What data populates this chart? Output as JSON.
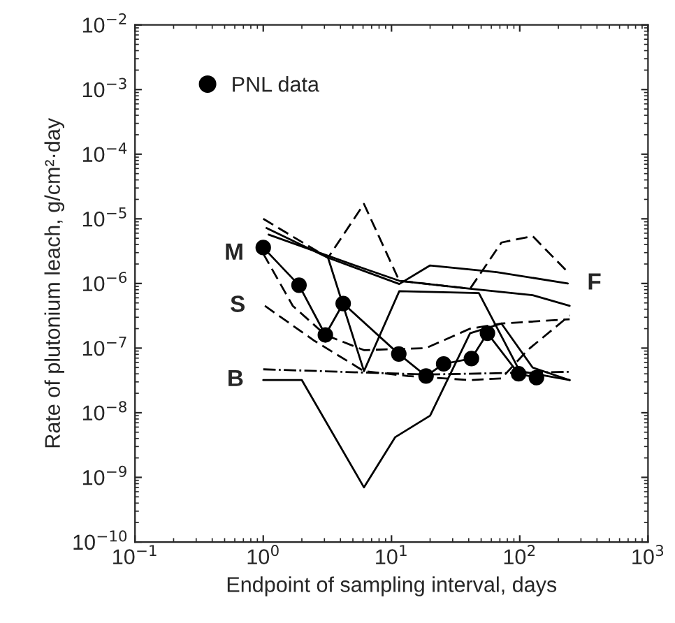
{
  "chart_data": {
    "type": "line",
    "xlabel": "Endpoint of sampling interval, days",
    "ylabel": "Rate of plutonium leach, g/cm²·day",
    "log": "xy",
    "grid": false,
    "legend": "top left",
    "xlim": [
      0.1,
      1000
    ],
    "ylim": [
      1e-10,
      0.01
    ],
    "xticks": [
      {
        "value": 0.1,
        "label": "10$^{−1}$"
      },
      {
        "value": 1,
        "label": "10$^{0}$"
      },
      {
        "value": 10,
        "label": "10$^{1}$"
      },
      {
        "value": 100,
        "label": "10$^{2}$"
      },
      {
        "value": 1000,
        "label": "10$^{3}$"
      }
    ],
    "yticks": [
      {
        "value": 1e-10,
        "label": "10$^{−10}$"
      },
      {
        "value": 1e-09,
        "label": "10$^{−9}$"
      },
      {
        "value": 1e-08,
        "label": "10$^{−8}$"
      },
      {
        "value": 1e-07,
        "label": "10$^{−7}$"
      },
      {
        "value": 1e-06,
        "label": "10$^{−6}$"
      },
      {
        "value": 1e-05,
        "label": "10$^{−5}$"
      },
      {
        "value": 0.0001,
        "label": "10$^{−4}$"
      },
      {
        "value": 0.001,
        "label": "10$^{−3}$"
      },
      {
        "value": 0.01,
        "label": "10$^{−2}$"
      }
    ],
    "series": [
      {
        "name": "PNL data",
        "color": "#000000",
        "marker": "circle",
        "line_style": "solid",
        "x": [
          1.0,
          1.9,
          3.05,
          4.2,
          11.4,
          18.6,
          25.5,
          42,
          56,
          98,
          135
        ],
        "values": [
          3.6e-06,
          9.4e-07,
          1.6e-07,
          4.9e-07,
          8.1e-08,
          3.7e-08,
          5.7e-08,
          6.9e-08,
          1.7e-07,
          4e-08,
          3.5e-08
        ]
      },
      {
        "name": "B",
        "color": "#000000",
        "marker": "none",
        "line_style": "solid",
        "x": [
          1.0,
          2.0,
          6.1,
          10.7,
          20,
          41,
          72,
          126,
          245
        ],
        "values": [
          3.2e-08,
          3.2e-08,
          7e-10,
          4.2e-09,
          9e-09,
          1.7e-07,
          2.4e-07,
          5e-08,
          3.2e-08
        ]
      },
      {
        "color": "#000000",
        "marker": "none",
        "line_style": "dashdot",
        "x": [
          1.0,
          18.6,
          245
        ],
        "values": [
          4.7e-08,
          3.9e-08,
          4.3e-08
        ]
      },
      {
        "name": "S",
        "color": "#000000",
        "marker": "none",
        "line_style": "dashed",
        "x": [
          1.03,
          2.5,
          6.1,
          13.4,
          41,
          72,
          115,
          245
        ],
        "values": [
          4.5e-07,
          1.3e-07,
          4.4e-08,
          3.7e-08,
          3.2e-08,
          3.4e-08,
          9.3e-08,
          3.2e-07
        ]
      },
      {
        "name": "M",
        "color": "#000000",
        "marker": "none",
        "line_style": "dashed",
        "x": [
          1.0,
          1.7,
          3.05,
          6.1,
          18.6,
          41,
          72,
          245
        ],
        "values": [
          2.9e-06,
          4.5e-07,
          1.6e-07,
          9.3e-08,
          1e-07,
          2e-07,
          2.4e-07,
          2.8e-07
        ]
      },
      {
        "color": "#000000",
        "marker": "none",
        "line_style": "dashed",
        "x": [
          1.0,
          3.2,
          6.1,
          11.5,
          41,
          72,
          126,
          237
        ],
        "values": [
          1e-05,
          2.5e-06,
          1.7e-05,
          1.1e-06,
          8.3e-07,
          4.3e-06,
          5.4e-06,
          1.5e-06
        ]
      },
      {
        "name": "F",
        "color": "#000000",
        "marker": "none",
        "line_style": "solid",
        "x": [
          1.06,
          3.2,
          11.5,
          20,
          66,
          237
        ],
        "values": [
          7.2e-06,
          2.5e-06,
          9.8e-07,
          1.9e-06,
          1.5e-06,
          1e-06
        ]
      },
      {
        "color": "#000000",
        "marker": "none",
        "line_style": "solid",
        "x": [
          1.1,
          6.1,
          11.5,
          41,
          126,
          245
        ],
        "values": [
          5.7e-06,
          1.7e-06,
          1.1e-06,
          8.3e-07,
          6.6e-07,
          4.5e-07
        ]
      },
      {
        "color": "#000000",
        "marker": "none",
        "line_style": "solid",
        "x": [
          3.2,
          6.1,
          11.5,
          48,
          100,
          245
        ],
        "values": [
          2.5e-06,
          4.4e-08,
          7.6e-07,
          7.1e-07,
          4.4e-08,
          3.2e-08
        ]
      }
    ]
  }
}
